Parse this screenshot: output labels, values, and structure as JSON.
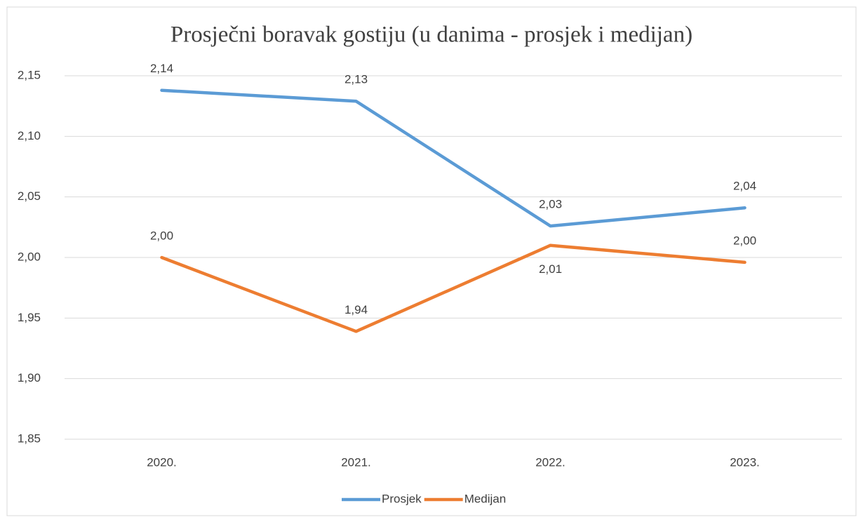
{
  "chart_data": {
    "type": "line",
    "title": "Prosječni boravak gostiju (u danima - prosjek i medijan)",
    "categories": [
      "2020.",
      "2021.",
      "2022.",
      "2023."
    ],
    "series": [
      {
        "name": "Prosjek",
        "color": "#5b9bd5",
        "values": [
          2.138,
          2.129,
          2.026,
          2.041
        ],
        "value_labels": [
          "2,14",
          "2,13",
          "2,03",
          "2,04"
        ]
      },
      {
        "name": "Medijan",
        "color": "#ed7d31",
        "values": [
          2.0,
          1.939,
          2.01,
          1.996
        ],
        "value_labels": [
          "2,00",
          "1,94",
          "2,01",
          "2,00"
        ]
      }
    ],
    "ylim": [
      1.85,
      2.15
    ],
    "yticks": [
      {
        "value": 1.85,
        "label": "1,85"
      },
      {
        "value": 1.9,
        "label": "1,90"
      },
      {
        "value": 1.95,
        "label": "1,95"
      },
      {
        "value": 2.0,
        "label": "2,00"
      },
      {
        "value": 2.05,
        "label": "2,05"
      },
      {
        "value": 2.1,
        "label": "2,10"
      },
      {
        "value": 2.15,
        "label": "2,15"
      }
    ],
    "grid": true,
    "legend": "bottom"
  }
}
